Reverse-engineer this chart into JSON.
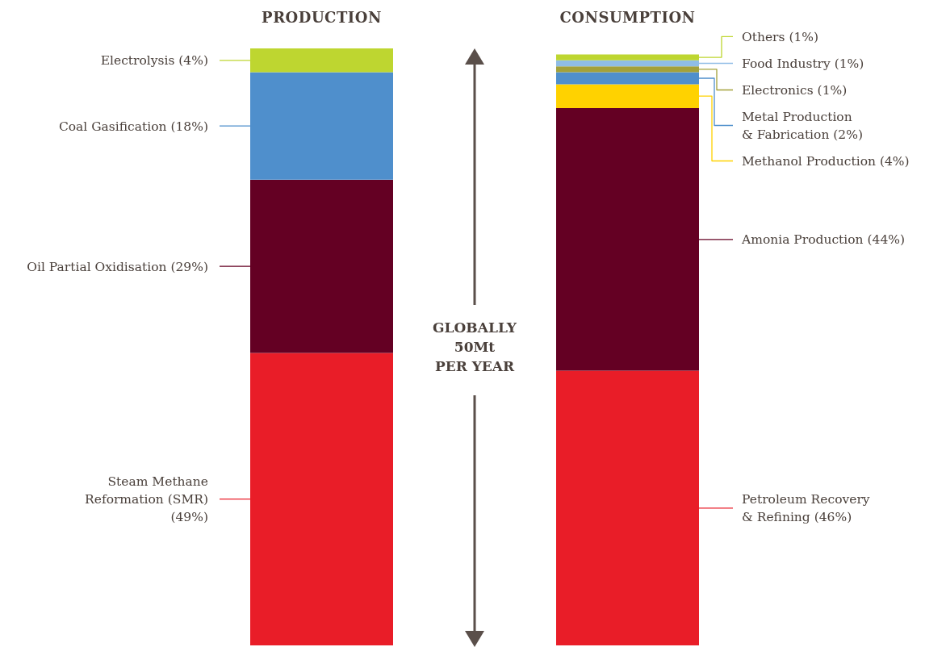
{
  "chart_data": {
    "type": "bar",
    "stacked": true,
    "categories": [
      "PRODUCTION",
      "CONSUMPTION"
    ],
    "ylim": [
      0,
      100
    ],
    "grid": false,
    "legend": false,
    "tick_labels": "x",
    "series": [
      {
        "name": "Steam Methane\nReformation (SMR)",
        "color": "#e91d28",
        "values": [
          49,
          null
        ],
        "value_labels": [
          "(49%)",
          null
        ]
      },
      {
        "name": "Oil Partial Oxidisation",
        "color": "#640023",
        "values": [
          29,
          null
        ],
        "value_labels": [
          "(29%)",
          null
        ]
      },
      {
        "name": "Coal Gasification",
        "color": "#4f8fcc",
        "values": [
          18,
          null
        ],
        "value_labels": [
          "(18%)",
          null
        ]
      },
      {
        "name": "Electrolysis",
        "color": "#bed630",
        "values": [
          4,
          null
        ],
        "value_labels": [
          "(4%)",
          null
        ]
      },
      {
        "name": "Petroleum Recovery\n& Refining",
        "color": "#e91d28",
        "values": [
          null,
          46
        ],
        "value_labels": [
          null,
          "(46%)"
        ]
      },
      {
        "name": "Amonia Production",
        "color": "#640023",
        "values": [
          null,
          44
        ],
        "value_labels": [
          null,
          "(44%)"
        ]
      },
      {
        "name": "Methanol Production",
        "color": "#ffd200",
        "values": [
          null,
          4
        ],
        "value_labels": [
          null,
          "(4%)"
        ]
      },
      {
        "name": "Metal Production\n& Fabrication",
        "color": "#4f8fcc",
        "values": [
          null,
          2
        ],
        "value_labels": [
          null,
          "(2%)"
        ]
      },
      {
        "name": "Electronics",
        "color": "#a3a13a",
        "values": [
          null,
          1
        ],
        "value_labels": [
          null,
          "(1%)"
        ]
      },
      {
        "name": "Food Industry",
        "color": "#8fbde6",
        "values": [
          null,
          1
        ],
        "value_labels": [
          null,
          "(1%)"
        ]
      },
      {
        "name": "Others",
        "color": "#bed630",
        "values": [
          null,
          1
        ],
        "value_labels": [
          null,
          "(1%)"
        ]
      }
    ],
    "annotations": [
      "GLOBALLY",
      "50Mt",
      "PER YEAR"
    ]
  }
}
